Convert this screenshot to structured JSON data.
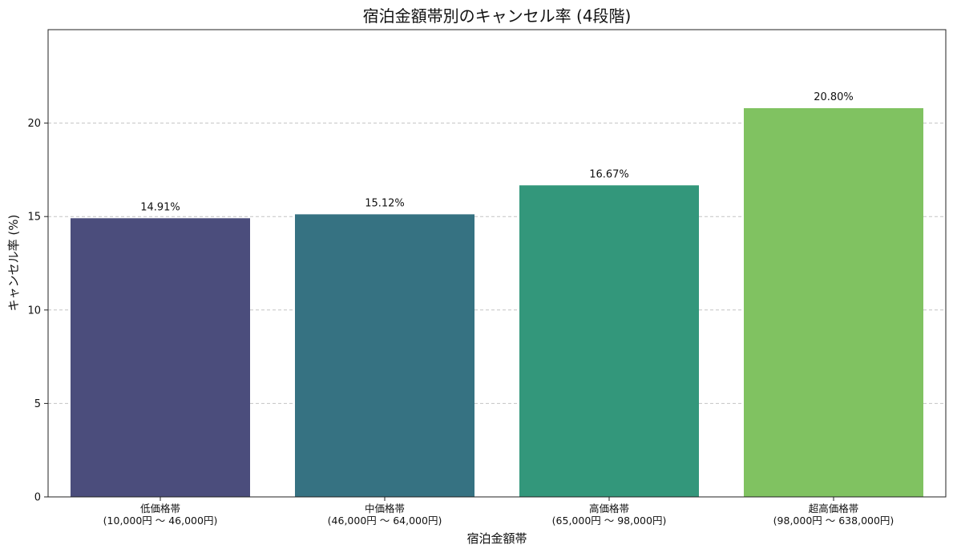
{
  "chart_data": {
    "type": "bar",
    "title": "宿泊金額帯別のキャンセル率 (4段階)",
    "xlabel": "宿泊金額帯",
    "ylabel": "キャンセル率 (%)",
    "ylim": [
      0,
      25
    ],
    "yticks": [
      0,
      5,
      10,
      15,
      20
    ],
    "grid": true,
    "categories": [
      "低価格帯\n(10,000円 〜 46,000円)",
      "中価格帯\n(46,000円 〜 64,000円)",
      "高価格帯\n(65,000円 〜 98,000円)",
      "超高価格帯\n(98,000円 〜 638,000円)"
    ],
    "values": [
      14.91,
      15.12,
      16.67,
      20.8
    ],
    "data_labels": [
      "14.91%",
      "15.12%",
      "16.67%",
      "20.80%"
    ],
    "colors": [
      "#4b4d7c",
      "#367282",
      "#33977b",
      "#80c261"
    ]
  }
}
